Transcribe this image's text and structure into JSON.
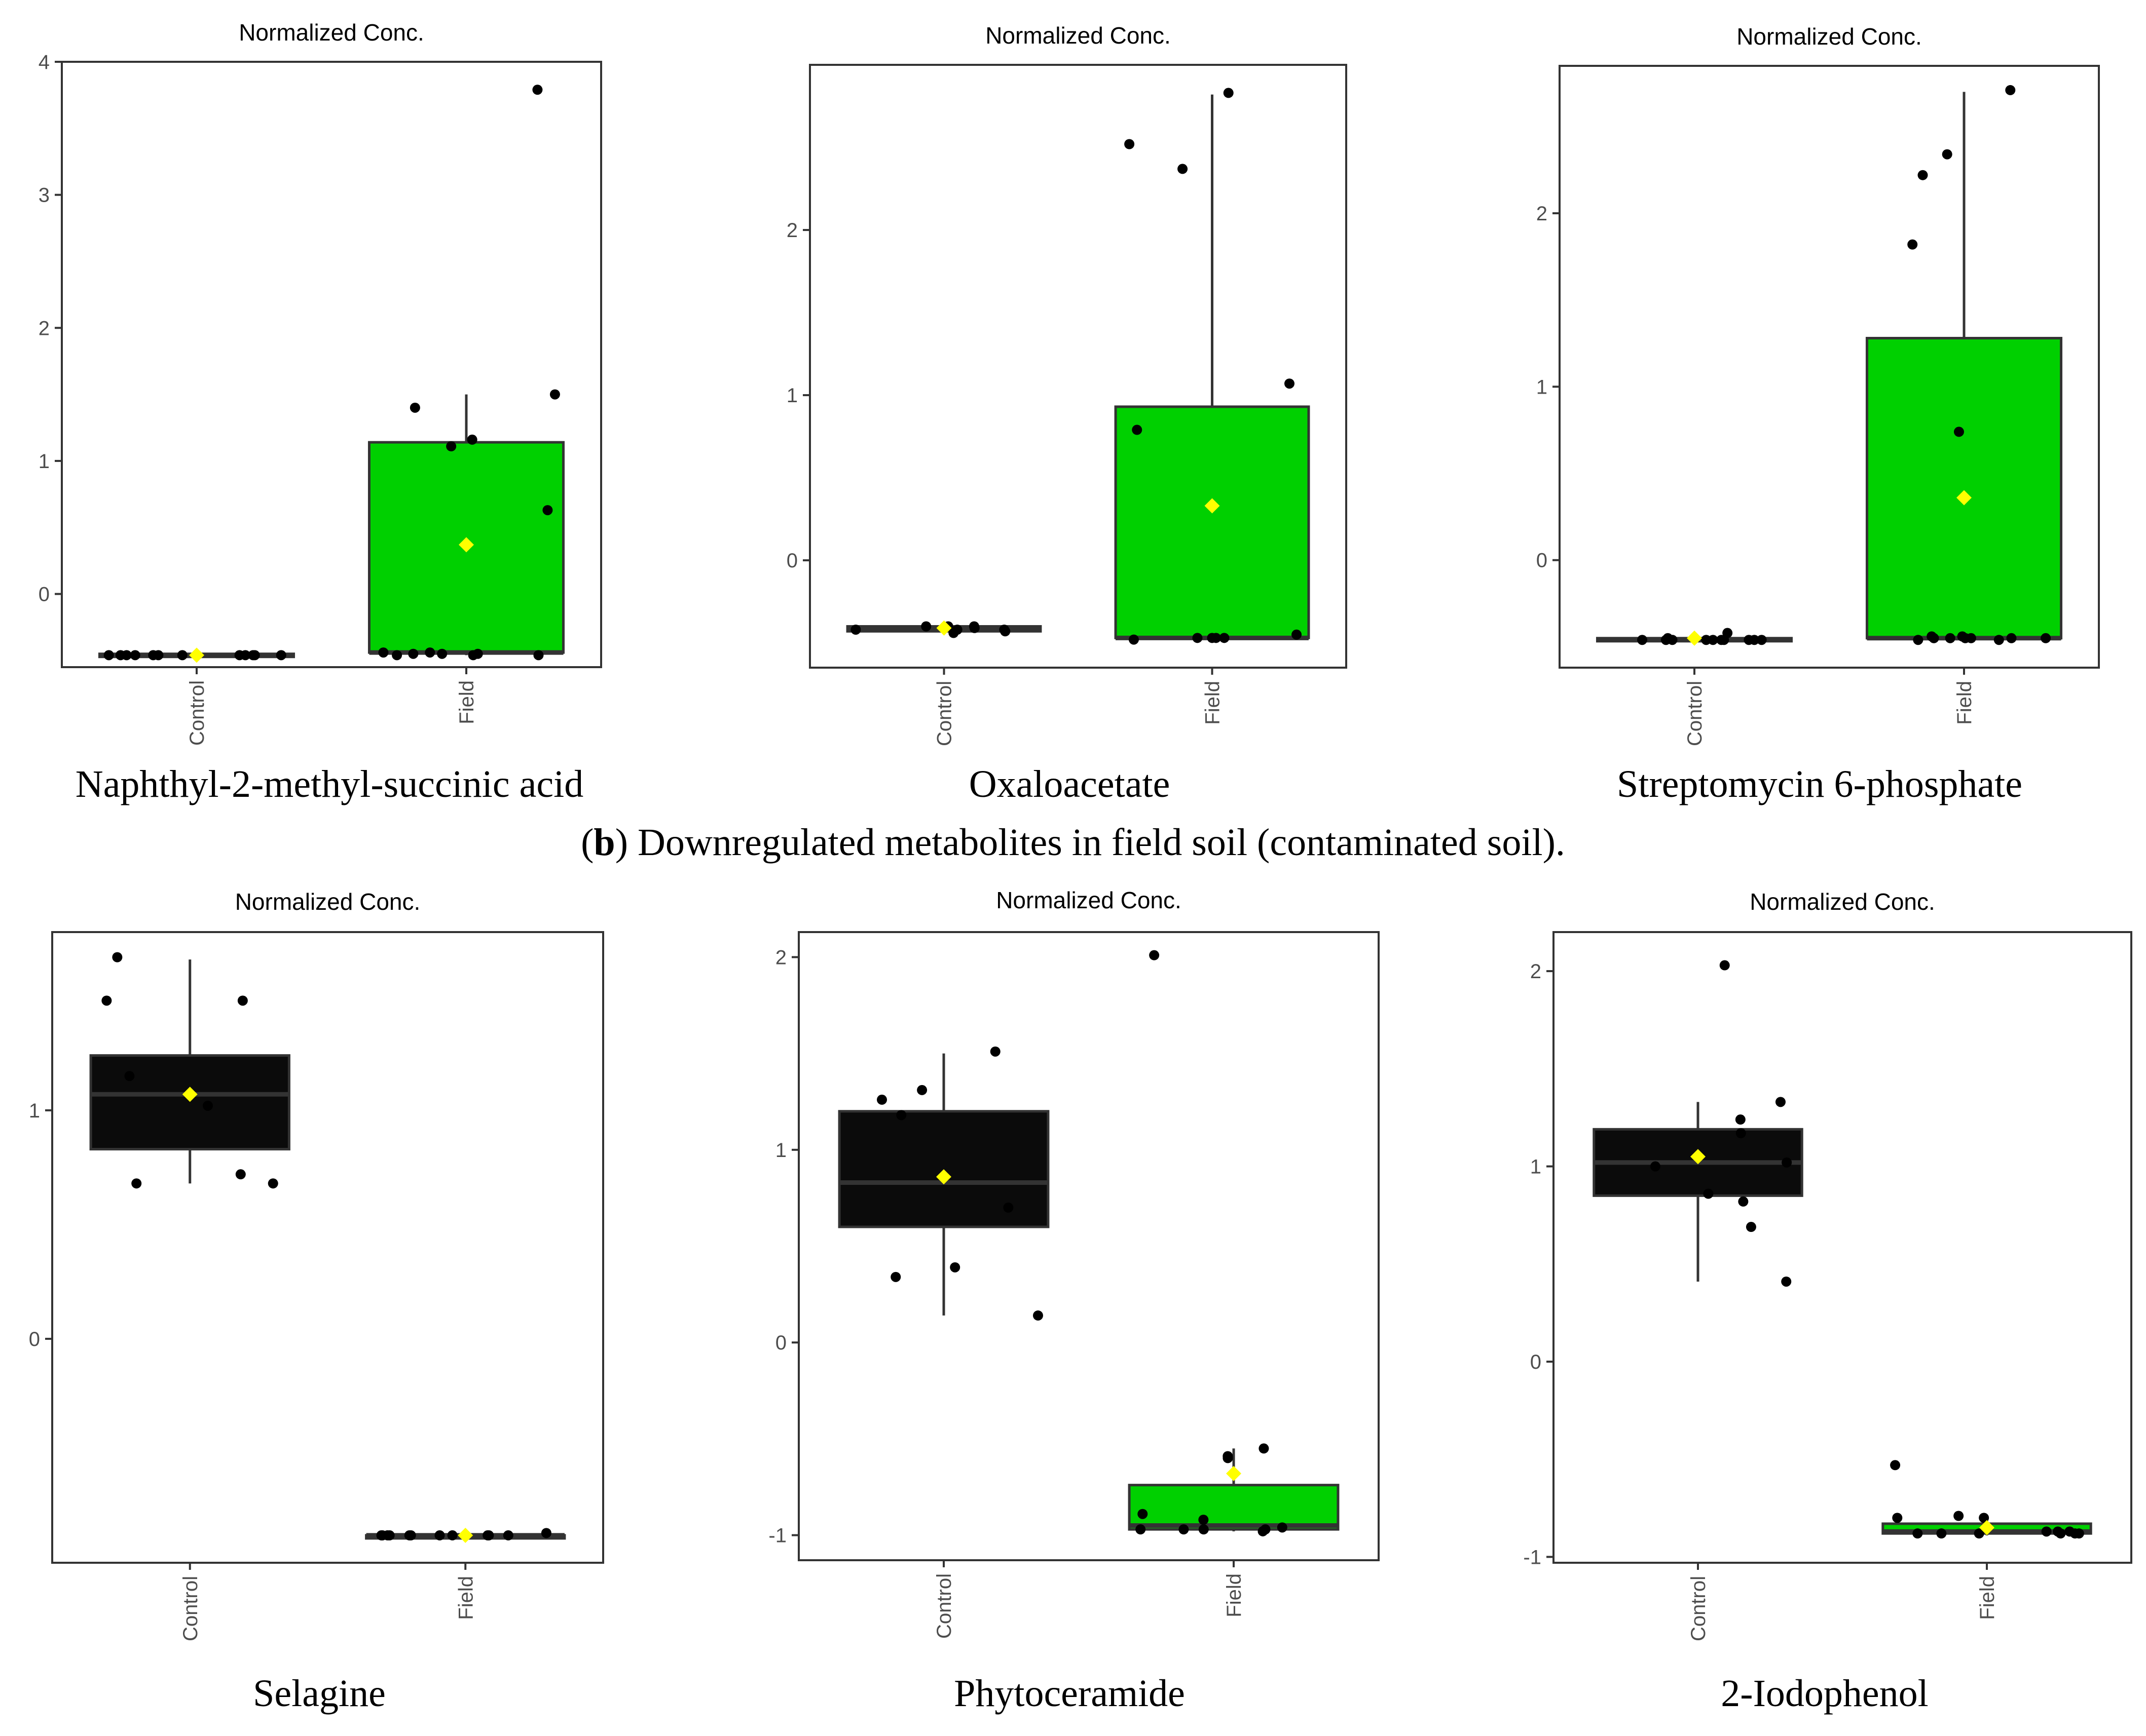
{
  "section_b_caption": {
    "prefix": "(",
    "letter": "b",
    "text": ") Downregulated metabolites in field soil (contaminated soil)."
  },
  "colors": {
    "control_fill": "#0b0b0b",
    "field_fill": "#00d000",
    "mean_marker": "#ffff00",
    "point": "#000000",
    "axis": "#333333"
  },
  "chart_data": [
    {
      "type": "box",
      "id": "naphthyl",
      "title": "Normalized Conc.",
      "name": "Naphthyl-2-methyl-succinic acid",
      "categories": [
        "Control",
        "Field"
      ],
      "ylim": [
        -0.55,
        4.0
      ],
      "yticks": [
        0,
        1,
        2,
        3,
        4
      ],
      "boxes": [
        {
          "q1": -0.46,
          "median": -0.46,
          "q3": -0.45,
          "whisker_low": -0.46,
          "whisker_high": -0.45,
          "mean": -0.46
        },
        {
          "q1": -0.44,
          "median": -0.44,
          "q3": 1.14,
          "whisker_low": -0.46,
          "whisker_high": 1.5,
          "mean": 0.37
        }
      ],
      "points": [
        [
          -0.46,
          -0.46,
          -0.46,
          -0.46,
          -0.46,
          -0.46,
          -0.46,
          -0.46,
          -0.46,
          -0.46,
          -0.46,
          -0.46
        ],
        [
          -0.45,
          -0.45,
          -0.44,
          -0.46,
          -0.46,
          -0.44,
          -0.46,
          -0.45,
          1.11,
          1.5,
          1.4,
          1.16,
          0.63,
          3.79
        ]
      ]
    },
    {
      "type": "box",
      "id": "oxaloacetate",
      "title": "Normalized Conc.",
      "name": "Oxaloacetate",
      "categories": [
        "Control",
        "Field"
      ],
      "ylim": [
        -0.65,
        3.0
      ],
      "yticks": [
        0,
        1,
        2
      ],
      "boxes": [
        {
          "q1": -0.43,
          "median": -0.42,
          "q3": -0.4,
          "whisker_low": -0.44,
          "whisker_high": -0.39,
          "mean": -0.41
        },
        {
          "q1": -0.47,
          "median": -0.47,
          "q3": 0.93,
          "whisker_low": -0.48,
          "whisker_high": 2.82,
          "mean": 0.33
        }
      ],
      "points": [
        [
          -0.4,
          -0.42,
          -0.43,
          -0.42,
          -0.41,
          -0.4,
          -0.42,
          -0.44,
          -0.4
        ],
        [
          -0.47,
          -0.47,
          -0.48,
          -0.47,
          -0.45,
          -0.47,
          1.07,
          0.79,
          2.37,
          2.52,
          2.83
        ]
      ]
    },
    {
      "type": "box",
      "id": "streptomycin",
      "title": "Normalized Conc.",
      "name": "Streptomycin 6-phosphate",
      "categories": [
        "Control",
        "Field"
      ],
      "ylim": [
        -0.62,
        2.85
      ],
      "yticks": [
        0,
        1,
        2
      ],
      "boxes": [
        {
          "q1": -0.46,
          "median": -0.46,
          "q3": -0.45,
          "whisker_low": -0.47,
          "whisker_high": -0.44,
          "mean": -0.45
        },
        {
          "q1": -0.45,
          "median": -0.45,
          "q3": 1.28,
          "whisker_low": -0.47,
          "whisker_high": 2.7,
          "mean": 0.36
        }
      ],
      "points": [
        [
          -0.46,
          -0.46,
          -0.46,
          -0.45,
          -0.42,
          -0.46,
          -0.46,
          -0.46,
          -0.46,
          -0.46,
          -0.46,
          -0.46
        ],
        [
          -0.45,
          -0.45,
          -0.44,
          -0.46,
          -0.45,
          -0.44,
          -0.46,
          -0.45,
          -0.45,
          -0.45,
          0.74,
          2.22,
          1.82,
          2.34,
          2.71
        ]
      ]
    },
    {
      "type": "box",
      "id": "selagine",
      "title": "Normalized Conc.",
      "name": "Selagine",
      "categories": [
        "Control",
        "Field"
      ],
      "ylim": [
        -0.98,
        1.78
      ],
      "yticks": [
        0,
        1
      ],
      "boxes": [
        {
          "q1": 0.83,
          "median": 1.07,
          "q3": 1.24,
          "whisker_low": 0.68,
          "whisker_high": 1.66,
          "mean": 1.07
        },
        {
          "q1": -0.86,
          "median": -0.86,
          "q3": -0.86,
          "whisker_low": -0.86,
          "whisker_high": -0.85,
          "mean": -0.86
        }
      ],
      "points": [
        [
          1.48,
          1.67,
          1.48,
          0.68,
          0.72,
          0.68,
          1.15,
          1.02
        ],
        [
          -0.86,
          -0.86,
          -0.86,
          -0.86,
          -0.86,
          -0.86,
          -0.86,
          -0.85,
          -0.86,
          -0.86,
          -0.86,
          -0.86
        ]
      ]
    },
    {
      "type": "box",
      "id": "phytoceramide",
      "title": "Normalized Conc.",
      "name": "Phytoceramide",
      "categories": [
        "Control",
        "Field"
      ],
      "ylim": [
        -1.13,
        2.13
      ],
      "yticks": [
        -1,
        0,
        1,
        2
      ],
      "boxes": [
        {
          "q1": 0.6,
          "median": 0.83,
          "q3": 1.2,
          "whisker_low": 0.14,
          "whisker_high": 1.5,
          "mean": 0.86
        },
        {
          "q1": -0.97,
          "median": -0.95,
          "q3": -0.74,
          "whisker_low": -0.98,
          "whisker_high": -0.55,
          "mean": -0.68
        }
      ],
      "points": [
        [
          1.26,
          1.51,
          1.31,
          0.39,
          0.14,
          0.34,
          1.18,
          0.7
        ],
        [
          -0.97,
          -0.97,
          -0.96,
          -0.97,
          -0.98,
          -0.92,
          -0.89,
          -0.97,
          -0.6,
          -0.55,
          -0.59,
          2.01
        ]
      ]
    },
    {
      "type": "box",
      "id": "iodophenol",
      "title": "Normalized Conc.",
      "name": "2-Iodophenol",
      "categories": [
        "Control",
        "Field"
      ],
      "ylim": [
        -1.03,
        2.2
      ],
      "yticks": [
        -1,
        0,
        1,
        2
      ],
      "boxes": [
        {
          "q1": 0.85,
          "median": 1.02,
          "q3": 1.19,
          "whisker_low": 0.41,
          "whisker_high": 1.33,
          "mean": 1.05
        },
        {
          "q1": -0.88,
          "median": -0.87,
          "q3": -0.83,
          "whisker_low": -0.89,
          "whisker_high": -0.8,
          "mean": -0.85
        }
      ],
      "points": [
        [
          2.03,
          1.24,
          1.33,
          0.82,
          0.69,
          0.41,
          1.0,
          0.86,
          1.17,
          1.02
        ],
        [
          -0.88,
          -0.87,
          -0.88,
          -0.88,
          -0.87,
          -0.88,
          -0.87,
          -0.8,
          -0.79,
          -0.8,
          -0.88,
          -0.88,
          -0.53
        ]
      ]
    }
  ]
}
